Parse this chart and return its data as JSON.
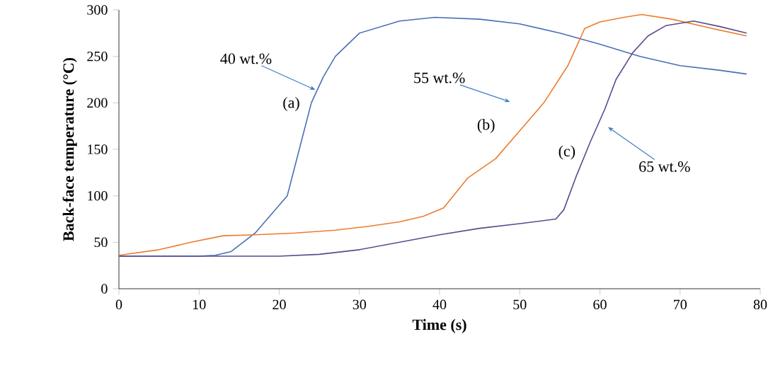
{
  "chart_data": {
    "type": "line",
    "xlabel": "Time (s)",
    "ylabel": "Back-face temperature (°C)",
    "xlim": [
      0,
      80
    ],
    "ylim": [
      0,
      300
    ],
    "xticks": [
      0,
      10,
      20,
      30,
      40,
      50,
      60,
      70,
      80
    ],
    "yticks": [
      0,
      50,
      100,
      150,
      200,
      250,
      300
    ],
    "grid": false,
    "marker": "none",
    "line_style": "solid",
    "series": [
      {
        "color": "#4a6fb5",
        "x": [
          0,
          5,
          10,
          12,
          14,
          17,
          19,
          21,
          22.5,
          24,
          25.5,
          27,
          30,
          35,
          39.4,
          45,
          50,
          55,
          60,
          65,
          70,
          75,
          78.3
        ],
        "values": [
          35,
          35,
          35,
          36,
          40,
          60,
          80,
          100,
          150,
          200,
          228,
          250,
          275,
          288,
          292,
          290,
          285,
          275,
          263,
          250,
          240,
          235,
          231
        ]
      },
      {
        "color": "#ec7c30",
        "x": [
          0,
          5,
          9,
          13,
          17,
          22,
          27,
          31,
          35,
          38,
          40.5,
          43.5,
          47,
          50,
          53,
          56,
          58.1,
          60,
          63,
          65.2,
          69,
          74,
          78.3
        ],
        "values": [
          36,
          42,
          50,
          57,
          58,
          60,
          63,
          67,
          72,
          78,
          87,
          119,
          140,
          170,
          200,
          240,
          280,
          287,
          292,
          295,
          290,
          280,
          272
        ]
      },
      {
        "color": "#5b4a8c",
        "x": [
          0,
          10,
          20,
          25,
          30,
          35,
          40,
          45,
          50,
          54.5,
          55.5,
          57,
          58.8,
          60.6,
          62,
          64.1,
          66,
          68.2,
          71.7,
          75,
          78.3
        ],
        "values": [
          35,
          35,
          35,
          37,
          42,
          50,
          58,
          65,
          70,
          75,
          85,
          120,
          158,
          193,
          225,
          254,
          272,
          283,
          288,
          282,
          275
        ]
      }
    ],
    "annotations": [
      {
        "text": "40 wt.%",
        "x": 24.5,
        "y": 214
      },
      "(a)",
      {
        "text": "55 wt.%",
        "x": 48.8,
        "y": 201
      },
      "(b)",
      {
        "text": "65 wt.%",
        "x": 61,
        "y": 174
      },
      "(c)"
    ]
  }
}
